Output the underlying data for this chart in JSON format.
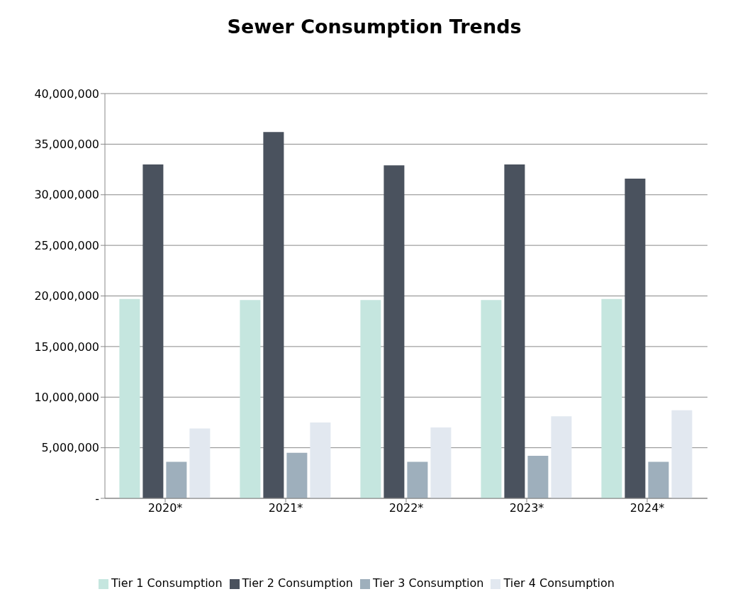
{
  "chart_data": {
    "type": "bar",
    "title": "Sewer Consumption Trends",
    "categories": [
      "2020*",
      "2021*",
      "2022*",
      "2023*",
      "2024*"
    ],
    "series": [
      {
        "name": "Tier 1 Consumption",
        "color": "#c5e6df",
        "values": [
          19700000,
          19600000,
          19600000,
          19600000,
          19700000
        ]
      },
      {
        "name": "Tier 2 Consumption",
        "color": "#4a525e",
        "values": [
          33000000,
          36200000,
          32900000,
          33000000,
          31600000
        ]
      },
      {
        "name": "Tier 3 Consumption",
        "color": "#9eafbc",
        "values": [
          3600000,
          4500000,
          3600000,
          4200000,
          3600000
        ]
      },
      {
        "name": "Tier 4 Consumption",
        "color": "#e2e8f0",
        "values": [
          6900000,
          7500000,
          7000000,
          8100000,
          8700000
        ]
      }
    ],
    "ylim": [
      0,
      40000000
    ],
    "yticks": [
      {
        "value": 0,
        "label": "-"
      },
      {
        "value": 5000000,
        "label": "5,000,000"
      },
      {
        "value": 10000000,
        "label": "10,000,000"
      },
      {
        "value": 15000000,
        "label": "15,000,000"
      },
      {
        "value": 20000000,
        "label": "20,000,000"
      },
      {
        "value": 25000000,
        "label": "25,000,000"
      },
      {
        "value": 30000000,
        "label": "30,000,000"
      },
      {
        "value": 35000000,
        "label": "35,000,000"
      },
      {
        "value": 40000000,
        "label": "40,000,000"
      }
    ],
    "grid": "y",
    "legend": "bottom"
  }
}
